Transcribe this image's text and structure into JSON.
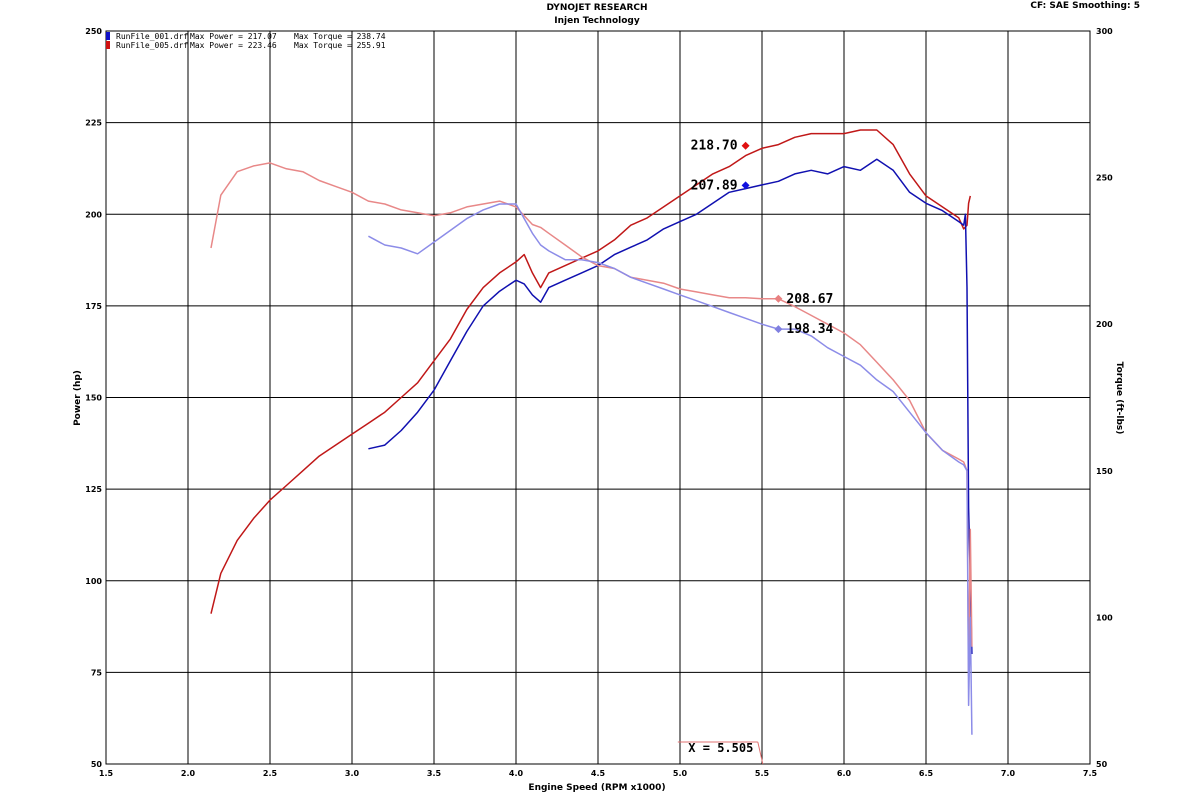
{
  "header": {
    "title": "DYNOJET RESEARCH",
    "subtitle": "Injen Technology",
    "settings": "CF: SAE  Smoothing: 5"
  },
  "legend": [
    {
      "file": "RunFile_001.drf",
      "power": "Max Power = 217.07",
      "torque": "Max Torque = 238.74",
      "color": "#1010c8"
    },
    {
      "file": "RunFile_005.drf",
      "power": "Max Power = 223.46",
      "torque": "Max Torque = 255.91",
      "color": "#d01010"
    }
  ],
  "cursor": {
    "label": "X = 5.505",
    "x": 5.505
  },
  "chart_data": {
    "type": "line",
    "xlabel": "Engine Speed (RPM x1000)",
    "ylabel": "Power (hp)",
    "y2label": "Torque (ft-lbs)",
    "xlim": [
      1.5,
      7.5
    ],
    "ylim": [
      50,
      250
    ],
    "y2lim": [
      50,
      300
    ],
    "xticks": [
      "1.5",
      "2.0",
      "2.5",
      "3.0",
      "3.5",
      "4.0",
      "4.5",
      "5.0",
      "5.5",
      "6.0",
      "6.5",
      "7.0",
      "7.5"
    ],
    "yticks": [
      "50",
      "75",
      "100",
      "125",
      "150",
      "175",
      "200",
      "225",
      "250"
    ],
    "y2ticks": [
      "50",
      "100",
      "150",
      "200",
      "250",
      "300"
    ],
    "grid": true,
    "series": [
      {
        "name": "RunFile_005.drf Power",
        "axis": "left",
        "color": "#c01818",
        "x": [
          2.14,
          2.2,
          2.3,
          2.4,
          2.5,
          2.6,
          2.7,
          2.8,
          2.9,
          3.0,
          3.1,
          3.2,
          3.3,
          3.4,
          3.5,
          3.6,
          3.7,
          3.8,
          3.9,
          4.0,
          4.05,
          4.1,
          4.15,
          4.2,
          4.3,
          4.4,
          4.5,
          4.6,
          4.7,
          4.8,
          4.9,
          5.0,
          5.1,
          5.2,
          5.3,
          5.4,
          5.5,
          5.6,
          5.7,
          5.8,
          5.9,
          6.0,
          6.1,
          6.2,
          6.3,
          6.4,
          6.5,
          6.6,
          6.7,
          6.73,
          6.75,
          6.76,
          6.77
        ],
        "y": [
          91,
          102,
          111,
          117,
          122,
          126,
          130,
          134,
          137,
          140,
          143,
          146,
          150,
          154,
          160,
          166,
          174,
          180,
          184,
          187,
          189,
          184,
          180,
          184,
          186,
          188,
          190,
          193,
          197,
          199,
          202,
          205,
          208,
          211,
          213,
          216,
          218,
          219,
          221,
          222,
          222,
          222,
          223,
          223,
          219,
          211,
          205,
          202,
          199,
          196,
          197,
          203,
          205
        ]
      },
      {
        "name": "RunFile_001.drf Power",
        "axis": "left",
        "color": "#1010b0",
        "x": [
          3.1,
          3.2,
          3.3,
          3.4,
          3.5,
          3.6,
          3.7,
          3.8,
          3.9,
          4.0,
          4.05,
          4.1,
          4.15,
          4.2,
          4.3,
          4.4,
          4.5,
          4.6,
          4.7,
          4.8,
          4.9,
          5.0,
          5.1,
          5.2,
          5.3,
          5.4,
          5.5,
          5.6,
          5.7,
          5.8,
          5.9,
          6.0,
          6.1,
          6.2,
          6.3,
          6.4,
          6.5,
          6.6,
          6.7,
          6.73,
          6.74,
          6.75,
          6.76,
          6.78
        ],
        "y": [
          136,
          137,
          141,
          146,
          152,
          160,
          168,
          175,
          179,
          182,
          181,
          178,
          176,
          180,
          182,
          184,
          186,
          189,
          191,
          193,
          196,
          198,
          200,
          203,
          206,
          207,
          208,
          209,
          211,
          212,
          211,
          213,
          212,
          215,
          212,
          206,
          203,
          201,
          198,
          197,
          200,
          180,
          120,
          80
        ]
      },
      {
        "name": "RunFile_005.drf Torque",
        "axis": "right",
        "color": "#e88888",
        "x": [
          2.14,
          2.2,
          2.3,
          2.4,
          2.5,
          2.6,
          2.7,
          2.8,
          2.9,
          3.0,
          3.1,
          3.2,
          3.3,
          3.4,
          3.5,
          3.6,
          3.7,
          3.8,
          3.9,
          4.0,
          4.1,
          4.15,
          4.2,
          4.3,
          4.4,
          4.5,
          4.6,
          4.7,
          4.8,
          4.9,
          5.0,
          5.1,
          5.2,
          5.3,
          5.4,
          5.5,
          5.6,
          5.7,
          5.8,
          5.9,
          6.0,
          6.1,
          6.2,
          6.3,
          6.4,
          6.5,
          6.6,
          6.7,
          6.73,
          6.75,
          6.76,
          6.77,
          6.78
        ],
        "y": [
          226,
          244,
          252,
          254,
          255,
          253,
          252,
          249,
          247,
          245,
          242,
          241,
          239,
          238,
          237,
          238,
          240,
          241,
          242,
          240,
          234,
          233,
          231,
          227,
          223,
          220,
          219,
          216,
          215,
          214,
          212,
          211,
          210,
          209,
          209,
          208.67,
          208.67,
          206,
          203,
          200,
          197,
          193,
          187,
          181,
          174,
          163,
          157,
          154,
          153,
          150,
          80,
          130,
          90
        ]
      },
      {
        "name": "RunFile_001.drf Torque",
        "axis": "right",
        "color": "#8c8ce8",
        "x": [
          3.1,
          3.2,
          3.3,
          3.4,
          3.5,
          3.6,
          3.7,
          3.8,
          3.9,
          4.0,
          4.1,
          4.15,
          4.2,
          4.3,
          4.4,
          4.5,
          4.6,
          4.7,
          4.8,
          4.9,
          5.0,
          5.1,
          5.2,
          5.3,
          5.4,
          5.5,
          5.6,
          5.7,
          5.8,
          5.9,
          6.0,
          6.1,
          6.2,
          6.3,
          6.4,
          6.5,
          6.6,
          6.7,
          6.73,
          6.75,
          6.76,
          6.77,
          6.78
        ],
        "y": [
          230,
          227,
          226,
          224,
          228,
          232,
          236,
          239,
          241,
          241,
          231,
          227,
          225,
          222,
          222,
          221,
          219,
          216,
          214,
          212,
          210,
          208,
          206,
          204,
          202,
          200,
          198.34,
          198.34,
          196,
          192,
          189,
          186,
          181,
          177,
          170,
          163,
          157,
          153,
          152,
          150,
          70,
          100,
          60
        ]
      }
    ],
    "markers": [
      {
        "label": "218.70",
        "x": 5.4,
        "y": 218.7,
        "axis": "left",
        "color": "#e01010",
        "side": "left"
      },
      {
        "label": "207.89",
        "x": 5.4,
        "y": 207.89,
        "axis": "left",
        "color": "#1010e0",
        "side": "left"
      },
      {
        "label": "208.67",
        "x": 5.6,
        "y": 208.67,
        "axis": "right",
        "color": "#e88080",
        "side": "right"
      },
      {
        "label": "198.34",
        "x": 5.6,
        "y": 198.34,
        "axis": "right",
        "color": "#8080e0",
        "side": "right"
      }
    ]
  }
}
